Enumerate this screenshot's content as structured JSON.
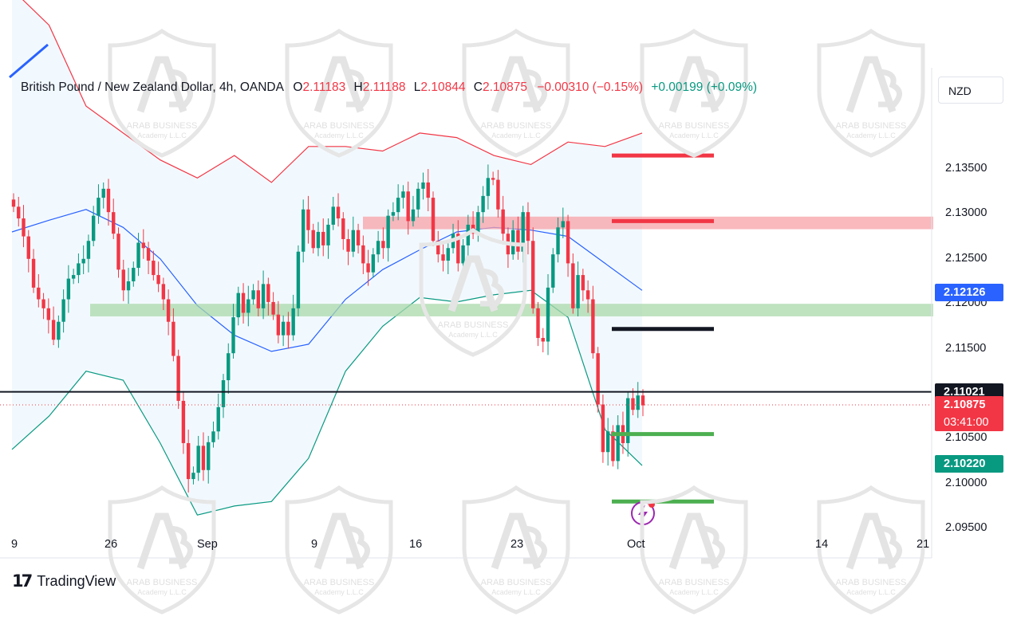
{
  "legend": {
    "symbol": "British Pound / New Zealand Dollar, 4h, OANDA",
    "o_label": "O",
    "o_value": "2.11183",
    "h_label": "H",
    "h_value": "2.11188",
    "l_label": "L",
    "l_value": "2.10844",
    "c_label": "C",
    "c_value": "2.10875",
    "change": "−0.00310 (−0.15%)",
    "extra_change": "+0.00199 (+0.09%)"
  },
  "currency_button": "NZD",
  "brand": {
    "name": "TradingView",
    "mark": "17"
  },
  "watermark_text": [
    "ARAB BUSINESS",
    "Academy L.L.C"
  ],
  "colors": {
    "up": "#089981",
    "down": "#f23645",
    "bb_upper": "#f23645",
    "bb_basis": "#2962ff",
    "bb_lower": "#089981",
    "bb_fill": "#2196f3"
  },
  "price_tags": [
    {
      "value": "2.12126",
      "color": "#2962ff"
    },
    {
      "value": "2.11021",
      "color": "#131722"
    },
    {
      "value": "2.10875",
      "countdown": "03:41:00",
      "color": "#f23645"
    },
    {
      "value": "2.10220",
      "color": "#089981"
    }
  ],
  "chart_data": {
    "type": "candlestick",
    "title": "British Pound / New Zealand Dollar, 4h, OANDA",
    "y_ticks": [
      "2.13500",
      "2.13000",
      "2.12500",
      "2.12000",
      "2.11500",
      "2.11021",
      "2.10500",
      "2.10000",
      "2.09500"
    ],
    "y_tick_values": [
      2.135,
      2.13,
      2.125,
      2.12,
      2.115,
      2.11021,
      2.105,
      2.1,
      2.095
    ],
    "x_ticks": [
      "9",
      "26",
      "Sep",
      "9",
      "16",
      "23",
      "Oct",
      "14",
      "21"
    ],
    "ylim": [
      2.093,
      2.142
    ],
    "last_close": 2.10875,
    "candle_closes": [
      2.1308,
      2.1295,
      2.1275,
      2.125,
      2.1218,
      2.1205,
      2.1195,
      2.1182,
      2.116,
      2.118,
      2.1205,
      2.1228,
      2.1232,
      2.1245,
      2.125,
      2.127,
      2.1298,
      2.1318,
      2.1328,
      2.1302,
      2.1278,
      2.1238,
      2.1215,
      2.1225,
      2.124,
      2.1268,
      2.1262,
      2.1248,
      2.1232,
      2.1222,
      2.1205,
      2.118,
      2.1142,
      2.1092,
      2.1045,
      2.1005,
      2.1012,
      2.1042,
      2.1015,
      2.1046,
      2.1058,
      2.1085,
      2.1115,
      2.1145,
      2.1185,
      2.1212,
      2.119,
      2.1205,
      2.1215,
      2.1195,
      2.1222,
      2.1202,
      2.1188,
      2.1165,
      2.118,
      2.1165,
      2.1195,
      2.1258,
      2.1305,
      2.1282,
      2.1262,
      2.128,
      2.1265,
      2.1288,
      2.1308,
      2.1295,
      2.1272,
      2.1258,
      2.1282,
      2.1265,
      2.1245,
      2.1235,
      2.1255,
      2.127,
      2.1262,
      2.1298,
      2.1302,
      2.1318,
      2.1325,
      2.1292,
      2.1305,
      2.1328,
      2.1335,
      2.1318,
      2.127,
      2.1255,
      2.1248,
      2.1262,
      2.1278,
      2.1245,
      2.1265,
      2.1288,
      2.1278,
      2.1302,
      2.132,
      2.134,
      2.1338,
      2.1305,
      2.1278,
      2.1255,
      2.1282,
      2.1258,
      2.1302,
      2.127,
      2.1195,
      2.1162,
      2.1158,
      2.1218,
      2.1255,
      2.1285,
      2.1292,
      2.1245,
      2.1195,
      2.1232,
      2.1215,
      2.1205,
      2.1145,
      2.1088,
      2.1035,
      2.1058,
      2.1025,
      2.1065,
      2.1045,
      2.1095,
      2.1082,
      2.1098,
      2.1087
    ],
    "bollinger": {
      "upper": [
        2.155,
        2.151,
        2.142,
        2.139,
        2.136,
        2.134,
        2.1365,
        2.1335,
        2.1375,
        2.1375,
        2.137,
        2.139,
        2.1385,
        2.1365,
        2.1355,
        2.138,
        2.1375,
        2.139
      ],
      "basis": [
        2.128,
        2.1293,
        2.1305,
        2.1285,
        2.125,
        2.1198,
        2.1165,
        2.1147,
        2.1155,
        2.1205,
        2.1238,
        2.126,
        2.128,
        2.1285,
        2.1282,
        2.1275,
        2.1245,
        2.1215
      ],
      "lower": [
        2.1038,
        2.1075,
        2.1125,
        2.1115,
        2.1045,
        2.0965,
        2.0975,
        2.098,
        2.1028,
        2.1125,
        2.1175,
        2.1207,
        2.1202,
        2.121,
        2.1215,
        2.1185,
        2.106,
        2.102
      ]
    },
    "zones": [
      {
        "kind": "resistance",
        "color": "#f7a1a7",
        "value": 2.129,
        "span": [
          2.1283,
          2.1297
        ]
      },
      {
        "kind": "support",
        "color": "#a9d8a9",
        "value": 2.1193,
        "span": [
          2.1186,
          2.12
        ]
      }
    ],
    "levels": [
      {
        "color": "#f23645",
        "value": 2.1365
      },
      {
        "color": "#f23645",
        "value": 2.1292
      },
      {
        "color": "#131722",
        "value": 2.1172
      },
      {
        "color": "#4caf50",
        "value": 2.1055
      },
      {
        "color": "#4caf50",
        "value": 2.098
      }
    ],
    "horizontal_line": 2.11021
  }
}
